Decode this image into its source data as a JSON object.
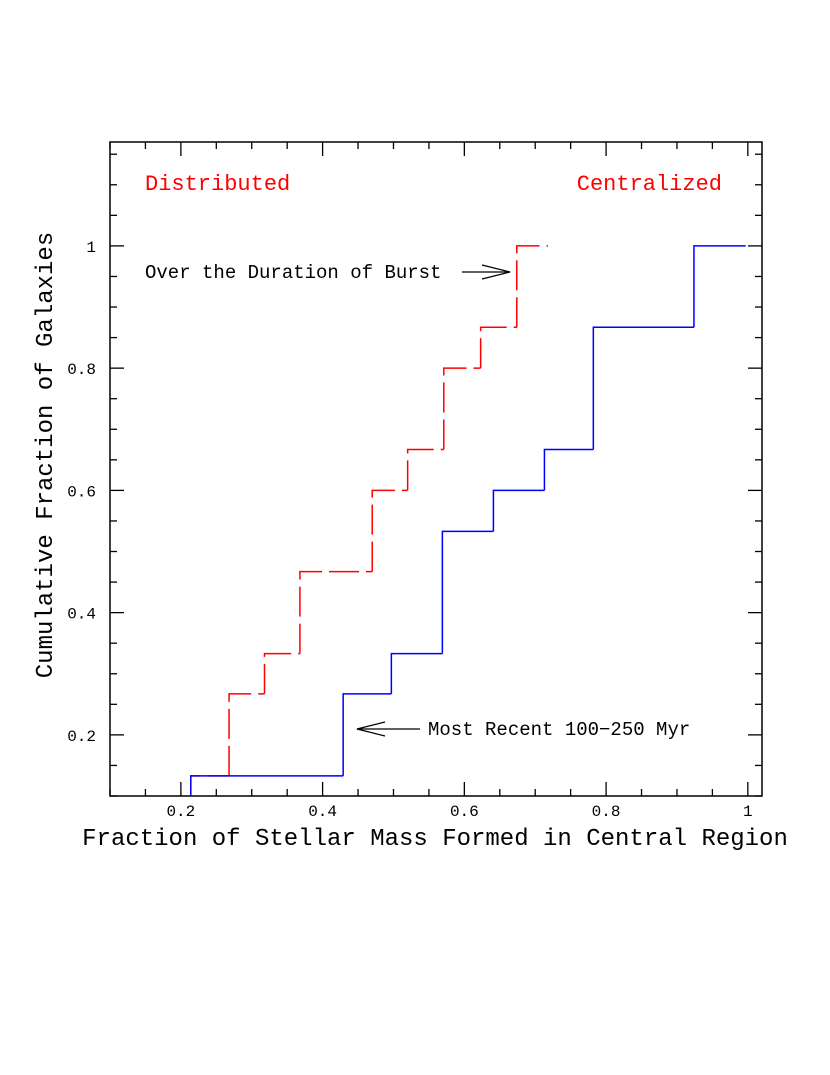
{
  "chart_data": {
    "type": "step",
    "xlabel": "Fraction of Stellar Mass Formed in Central Region",
    "ylabel": "Cumulative Fraction of Galaxies",
    "annotations": [
      "Distributed",
      "Centralized",
      "Over the Duration of Burst",
      "Most Recent 100−250 Myr"
    ],
    "xlim": [
      0.1,
      1.02
    ],
    "ylim": [
      0.1,
      1.17
    ],
    "xticks": [
      0.2,
      0.4,
      0.6,
      0.8,
      1
    ],
    "yticks": [
      0.2,
      0.4,
      0.6,
      0.8,
      1
    ],
    "series": [
      {
        "color": "#ff0000",
        "dashed": true,
        "x": [
          0.214,
          0.268,
          0.318,
          0.368,
          0.47,
          0.52,
          0.571,
          0.623,
          0.674,
          0.718
        ],
        "values": [
          0.133,
          0.267,
          0.333,
          0.467,
          0.6,
          0.667,
          0.8,
          0.867,
          1.0,
          1.0
        ]
      },
      {
        "color": "#0000ff",
        "dashed": false,
        "x": [
          0.214,
          0.429,
          0.497,
          0.569,
          0.641,
          0.713,
          0.782,
          0.924,
          0.997
        ],
        "values": [
          0.133,
          0.267,
          0.333,
          0.533,
          0.6,
          0.667,
          0.867,
          1.0,
          1.0
        ]
      }
    ]
  }
}
